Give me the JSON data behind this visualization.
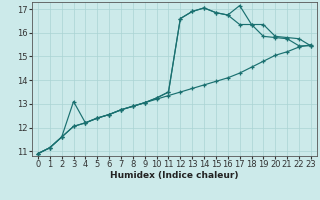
{
  "xlabel": "Humidex (Indice chaleur)",
  "xlabel_fontsize": 6.5,
  "xlabel_fontweight": "bold",
  "bg_color": "#cceaea",
  "line_color": "#1a7070",
  "grid_color": "#aad4d4",
  "xlim": [
    -0.5,
    23.5
  ],
  "ylim": [
    10.8,
    17.3
  ],
  "yticks": [
    11,
    12,
    13,
    14,
    15,
    16,
    17
  ],
  "xticks": [
    0,
    1,
    2,
    3,
    4,
    5,
    6,
    7,
    8,
    9,
    10,
    11,
    12,
    13,
    14,
    15,
    16,
    17,
    18,
    19,
    20,
    21,
    22,
    23
  ],
  "curve1_x": [
    0,
    1,
    2,
    3,
    4,
    5,
    6,
    7,
    8,
    9,
    10,
    11,
    12,
    13,
    14,
    15,
    16,
    17,
    18,
    19,
    20,
    21,
    22,
    23
  ],
  "curve1_y": [
    10.9,
    11.15,
    11.6,
    12.05,
    12.2,
    12.4,
    12.55,
    12.75,
    12.9,
    13.05,
    13.2,
    13.35,
    13.5,
    13.65,
    13.8,
    13.95,
    14.1,
    14.3,
    14.55,
    14.8,
    15.05,
    15.2,
    15.4,
    15.5
  ],
  "curve2_x": [
    0,
    1,
    2,
    3,
    4,
    5,
    6,
    7,
    8,
    9,
    10,
    11,
    12,
    13,
    14,
    15,
    16,
    17,
    18,
    19,
    20,
    21,
    22,
    23
  ],
  "curve2_y": [
    10.9,
    11.15,
    11.6,
    12.05,
    12.2,
    12.4,
    12.55,
    12.75,
    12.9,
    13.05,
    13.25,
    13.5,
    16.6,
    16.9,
    17.05,
    16.85,
    16.75,
    17.15,
    16.35,
    16.35,
    15.85,
    15.8,
    15.75,
    15.45
  ],
  "curve3_x": [
    0,
    1,
    2,
    3,
    4,
    5,
    6,
    7,
    8,
    9,
    10,
    11,
    12,
    13,
    14,
    15,
    16,
    17,
    18,
    19,
    20,
    21,
    22,
    23
  ],
  "curve3_y": [
    10.9,
    11.15,
    11.6,
    13.1,
    12.2,
    12.4,
    12.55,
    12.75,
    12.9,
    13.05,
    13.25,
    13.5,
    16.6,
    16.9,
    17.05,
    16.85,
    16.75,
    16.35,
    16.35,
    15.85,
    15.8,
    15.75,
    15.45,
    15.45
  ],
  "tick_fontsize": 6,
  "tick_color": "#333333",
  "linewidth": 0.85,
  "markersize": 3.5,
  "markeredgewidth": 0.9
}
